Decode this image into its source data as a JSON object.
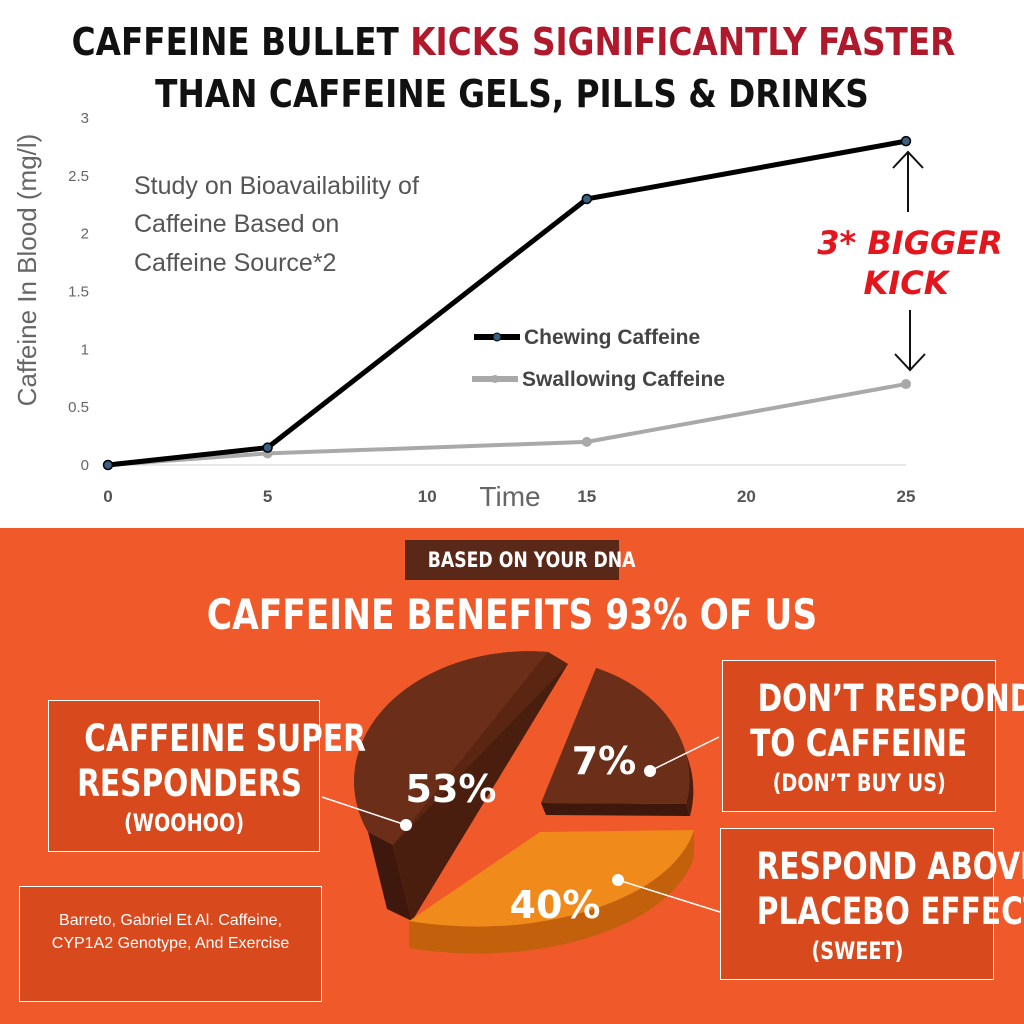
{
  "headline": {
    "line1_black": "CAFFEINE BULLET",
    "line1_red": "KICKS SIGNIFICANTLY FASTER",
    "line2": "THAN CAFFEINE GELS, PILLS & DRINKS"
  },
  "colors": {
    "accent_red": "#b0182c",
    "kick_red": "#e3151d",
    "chewing_line": "#000000",
    "swallowing_line": "#a9a9a9",
    "orange_bg": "#f0592a",
    "pie_brown": "#6b2e19",
    "pie_orange": "#f08a1a"
  },
  "chart_data": [
    {
      "type": "line",
      "x": [
        0,
        5,
        15,
        25
      ],
      "xlabel": "Time",
      "ylabel": "Caffeine In Blood (mg/l)",
      "ylim": [
        0,
        3
      ],
      "xticks": [
        "0",
        "5",
        "10",
        "15",
        "20",
        "25"
      ],
      "yticks": [
        "0",
        "0.5",
        "1",
        "1.5",
        "2",
        "2.5",
        "3"
      ],
      "grid": false,
      "legend_position": "center-right",
      "series": [
        {
          "name": "Chewing Caffeine",
          "values": [
            0,
            0.15,
            2.3,
            2.8
          ],
          "color": "#000000"
        },
        {
          "name": "Swallowing Caffeine",
          "values": [
            0,
            0.1,
            0.2,
            0.7
          ],
          "color": "#a9a9a9"
        }
      ],
      "annotations": {
        "study_note": [
          "Study on Bioavailability of",
          "Caffeine Based on",
          "Caffeine Source*2"
        ],
        "kick_label": [
          "3* BIGGER",
          "KICK"
        ]
      }
    },
    {
      "type": "pie",
      "slices": [
        {
          "label": "53%",
          "value": 53
        },
        {
          "label": "7%",
          "value": 7
        },
        {
          "label": "40%",
          "value": 40
        }
      ]
    }
  ],
  "dna": {
    "badge": "BASED ON YOUR DNA",
    "title": "CAFFEINE BENEFITS 93% OF US"
  },
  "boxes": {
    "super": {
      "line1": "CAFFEINE SUPER",
      "line2": "RESPONDERS",
      "line3": "(WOOHOO)"
    },
    "no_respond": {
      "line1": "DON’T RESPOND",
      "line2": "TO CAFFEINE",
      "line3": "(DON’T BUY US)"
    },
    "placebo": {
      "line1": "RESPOND ABOVE",
      "line2": "PLACEBO EFFECT",
      "line3": "(SWEET)"
    },
    "citation": "Barreto, Gabriel Et Al. Caffeine, CYP1A2 Genotype, And Exercise"
  }
}
